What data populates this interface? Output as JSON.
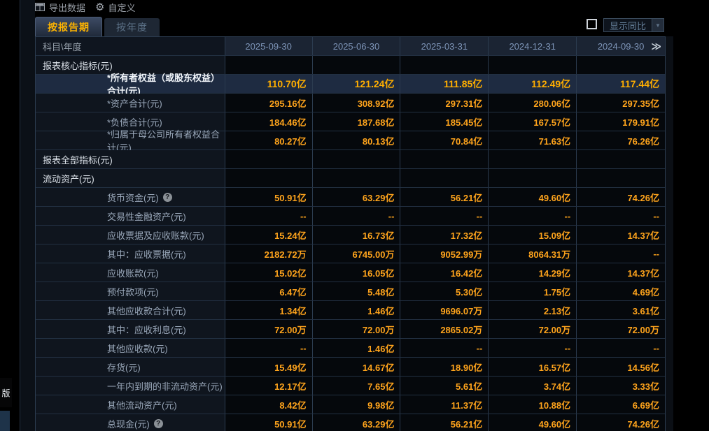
{
  "toolbar": {
    "export_label": "导出数据",
    "customize_label": "自定义",
    "gear_glyph": "⚙"
  },
  "tabs": [
    {
      "label": "按报告期",
      "active": true
    },
    {
      "label": "按年度",
      "active": false
    }
  ],
  "yoy_control": {
    "checked": false,
    "label": "显示同比",
    "arrow_glyph": "▼"
  },
  "side_banner": {
    "label": "版"
  },
  "table": {
    "corner_header": "科目\\年度",
    "columns": [
      "2025-09-30",
      "2025-06-30",
      "2025-03-31",
      "2024-12-31",
      "2024-09-30"
    ],
    "more_columns_icon": "≫",
    "rows": [
      {
        "label": "报表核心指标(元)",
        "type": "section",
        "values": [
          "",
          "",
          "",
          "",
          ""
        ]
      },
      {
        "label": "*所有者权益（或股东权益）合计(元)",
        "type": "highlight",
        "values": [
          "110.70亿",
          "121.24亿",
          "111.85亿",
          "112.49亿",
          "117.44亿"
        ]
      },
      {
        "label": "*资产合计(元)",
        "type": "item",
        "values": [
          "295.16亿",
          "308.92亿",
          "297.31亿",
          "280.06亿",
          "297.35亿"
        ]
      },
      {
        "label": "*负债合计(元)",
        "type": "item",
        "values": [
          "184.46亿",
          "187.68亿",
          "185.45亿",
          "167.57亿",
          "179.91亿"
        ]
      },
      {
        "label": "*归属于母公司所有者权益合计(元)",
        "type": "item",
        "values": [
          "80.27亿",
          "80.13亿",
          "70.84亿",
          "71.63亿",
          "76.26亿"
        ]
      },
      {
        "label": "报表全部指标(元)",
        "type": "section",
        "values": [
          "",
          "",
          "",
          "",
          ""
        ]
      },
      {
        "label": "流动资产(元)",
        "type": "section",
        "values": [
          "",
          "",
          "",
          "",
          ""
        ]
      },
      {
        "label": "货币资金(元)",
        "type": "item",
        "help": true,
        "values": [
          "50.91亿",
          "63.29亿",
          "56.21亿",
          "49.60亿",
          "74.26亿"
        ]
      },
      {
        "label": "交易性金融资产(元)",
        "type": "item",
        "values": [
          "--",
          "--",
          "--",
          "--",
          "--"
        ]
      },
      {
        "label": "应收票据及应收账款(元)",
        "type": "item",
        "values": [
          "15.24亿",
          "16.73亿",
          "17.32亿",
          "15.09亿",
          "14.37亿"
        ]
      },
      {
        "label": "其中：应收票据(元)",
        "type": "item",
        "values": [
          "2182.72万",
          "6745.00万",
          "9052.99万",
          "8064.31万",
          "--"
        ]
      },
      {
        "label": "应收账款(元)",
        "type": "item",
        "values": [
          "15.02亿",
          "16.05亿",
          "16.42亿",
          "14.29亿",
          "14.37亿"
        ]
      },
      {
        "label": "预付款项(元)",
        "type": "item",
        "values": [
          "6.47亿",
          "5.48亿",
          "5.30亿",
          "1.75亿",
          "4.69亿"
        ]
      },
      {
        "label": "其他应收款合计(元)",
        "type": "item",
        "values": [
          "1.34亿",
          "1.46亿",
          "9696.07万",
          "2.13亿",
          "3.61亿"
        ]
      },
      {
        "label": "其中：应收利息(元)",
        "type": "item",
        "values": [
          "72.00万",
          "72.00万",
          "2865.02万",
          "72.00万",
          "72.00万"
        ]
      },
      {
        "label": "其他应收款(元)",
        "type": "item",
        "values": [
          "--",
          "1.46亿",
          "--",
          "--",
          "--"
        ]
      },
      {
        "label": "存货(元)",
        "type": "item",
        "values": [
          "15.49亿",
          "14.67亿",
          "18.90亿",
          "16.57亿",
          "14.56亿"
        ]
      },
      {
        "label": "一年内到期的非流动资产(元)",
        "type": "item",
        "values": [
          "12.17亿",
          "7.65亿",
          "5.61亿",
          "3.74亿",
          "3.33亿"
        ]
      },
      {
        "label": "其他流动资产(元)",
        "type": "item",
        "values": [
          "8.42亿",
          "9.98亿",
          "11.37亿",
          "10.88亿",
          "6.69亿"
        ]
      },
      {
        "label": "总现金(元)",
        "type": "item",
        "help": true,
        "values": [
          "50.91亿",
          "63.29亿",
          "56.21亿",
          "49.60亿",
          "74.26亿"
        ]
      }
    ]
  },
  "colors": {
    "value_orange": "#ffa41c",
    "highlight_value_orange": "#ffae00",
    "tab_active_text": "#ffb400",
    "header_text": "#7e95b8",
    "highlight_row_bg": "#1e2b41",
    "header_bg": "#1b2433",
    "label_col_bg": "#0f151e",
    "value_col_bg": "#05080c"
  }
}
